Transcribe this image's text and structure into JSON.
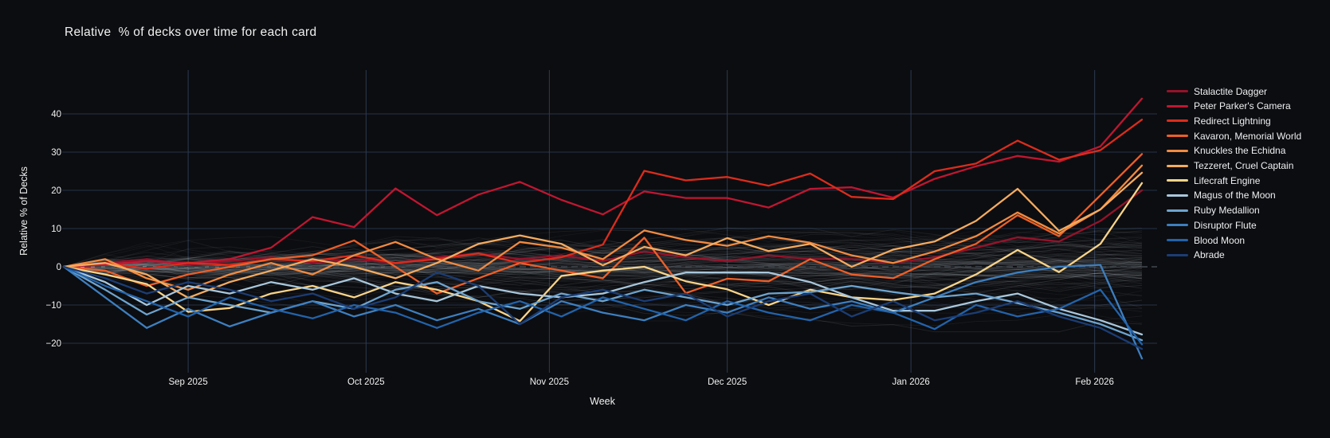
{
  "title": "Relative  % of decks over time for each card",
  "axes": {
    "x": {
      "title": "Week",
      "ticks": [
        {
          "label": "Sep 2025",
          "t": 3.0
        },
        {
          "label": "Oct 2025",
          "t": 7.29
        },
        {
          "label": "Nov 2025",
          "t": 11.71
        },
        {
          "label": "Dec 2025",
          "t": 16.0
        },
        {
          "label": "Jan 2026",
          "t": 20.43
        },
        {
          "label": "Feb 2026",
          "t": 24.86
        }
      ]
    },
    "y": {
      "title": "Relative % of Decks",
      "ticks": [
        {
          "label": "40",
          "v": 40
        },
        {
          "label": "30",
          "v": 30
        },
        {
          "label": "20",
          "v": 20
        },
        {
          "label": "10",
          "v": 10
        },
        {
          "label": "0",
          "v": 0
        },
        {
          "label": "−10",
          "v": -10
        },
        {
          "label": "−20",
          "v": -20
        }
      ]
    }
  },
  "chart_data": {
    "type": "line",
    "title": "Relative  % of decks over time for each card",
    "xlabel": "Week",
    "ylabel": "Relative % of Decks",
    "x_unit": "weekly samples, mid-Aug 2025 to mid-Feb 2026",
    "n_points": 27,
    "ylim": [
      -25,
      51
    ],
    "zeroline": {
      "value": 0,
      "style": "dashed",
      "color": "#3a4046"
    },
    "series": [
      {
        "name": "Stalactite Dagger",
        "color": "#96122a",
        "values": [
          0,
          1,
          2,
          0.5,
          1.5,
          2.5,
          1,
          2,
          1,
          2.5,
          3.5,
          2,
          3,
          1.5,
          4,
          2.5,
          1.5,
          3,
          2,
          2,
          1,
          2.5,
          5,
          7.7,
          6.6,
          12,
          20
        ]
      },
      {
        "name": "Peter Parker's Camera",
        "color": "#c01631",
        "values": [
          0,
          0.5,
          1.5,
          1,
          2,
          5,
          13,
          10.4,
          20.5,
          13.5,
          18.9,
          22.2,
          17.5,
          13.7,
          19.7,
          18,
          18,
          15.5,
          20.4,
          20.8,
          18.1,
          23,
          26.3,
          29,
          27.5,
          31.5,
          44
        ]
      },
      {
        "name": "Redirect Lightning",
        "color": "#dc2c1c",
        "values": [
          0,
          1,
          -0.5,
          1,
          0.5,
          2,
          1.5,
          3,
          1,
          2,
          3.5,
          1,
          2.5,
          5.8,
          25.1,
          22.6,
          23.5,
          21.2,
          24.4,
          18.3,
          17.7,
          25,
          27,
          33,
          28,
          30.5,
          38.5
        ]
      },
      {
        "name": "Kavaron, Memorial World",
        "color": "#ed5f28",
        "values": [
          0,
          -1,
          -5,
          -2,
          0,
          2,
          3,
          6.9,
          0,
          -7,
          -3,
          1,
          -1,
          -3,
          7.6,
          -6.9,
          -3.1,
          -3.8,
          2,
          -2,
          -3,
          2,
          6,
          13.5,
          8,
          18.7,
          29.5
        ]
      },
      {
        "name": "Knuckles the Echidna",
        "color": "#f28a40",
        "values": [
          0,
          2,
          -3,
          -6,
          -2,
          1,
          -2,
          3,
          6.5,
          2,
          -1,
          6.5,
          5,
          2,
          9.5,
          7,
          5.5,
          8,
          6.3,
          3,
          1,
          4,
          8,
          14.2,
          8.7,
          15,
          26.5
        ]
      },
      {
        "name": "Tezzeret, Cruel Captain",
        "color": "#f6ab5f",
        "values": [
          0,
          1,
          -2,
          -8.1,
          -4,
          -1,
          2,
          0,
          -3,
          1,
          6,
          8.2,
          6,
          0.4,
          5.2,
          3,
          7.5,
          4.1,
          6,
          0,
          4.5,
          6.6,
          12,
          20.4,
          9.4,
          15,
          24.6
        ]
      },
      {
        "name": "Lifecraft Engine",
        "color": "#fad488",
        "values": [
          0,
          -2,
          -4.5,
          -11.8,
          -10.8,
          -7,
          -5,
          -8,
          -4,
          -6,
          -9,
          -14.2,
          -2.4,
          -1,
          0,
          -3.8,
          -5.9,
          -10,
          -6,
          -8,
          -8.7,
          -7,
          -2,
          4.4,
          -1.4,
          6,
          21.9
        ]
      },
      {
        "name": "Magus of the Moon",
        "color": "#a8c7dc",
        "values": [
          0,
          -4,
          -10,
          -5,
          -7,
          -4,
          -6,
          -3,
          -7,
          -9,
          -5,
          -7,
          -8,
          -7,
          -4,
          -1.5,
          -1.5,
          -1.5,
          -4,
          -8,
          -11.5,
          -11.5,
          -9,
          -7,
          -11,
          -14,
          -17.7
        ]
      },
      {
        "name": "Ruby Medallion",
        "color": "#6da4cf",
        "values": [
          0,
          -6,
          -12.5,
          -8,
          -10,
          -12,
          -9,
          -11,
          -6,
          -4,
          -9,
          -11,
          -7,
          -9,
          -6,
          -8,
          -10,
          -7,
          -6.6,
          -5,
          -6.6,
          -8,
          -7,
          -9.5,
          -12,
          -15,
          -19.2
        ]
      },
      {
        "name": "Disruptor Flute",
        "color": "#3d7fc0",
        "values": [
          0,
          -8,
          -16,
          -11,
          -15.6,
          -12,
          -9,
          -13,
          -10,
          -14,
          -11,
          -15,
          -9,
          -12,
          -14,
          -10,
          -12,
          -8,
          -11,
          -9,
          -12,
          -8,
          -4,
          -1.5,
          0,
          0.5,
          -24
        ]
      },
      {
        "name": "Blood Moon",
        "color": "#2263ab",
        "values": [
          0,
          -5,
          -9,
          -13,
          -8,
          -11,
          -13.5,
          -10,
          -12,
          -16,
          -12,
          -9,
          -13,
          -8,
          -11,
          -14,
          -9,
          -12,
          -14,
          -10,
          -12,
          -16.3,
          -10,
          -13,
          -11,
          -6,
          -20.3
        ]
      },
      {
        "name": "Abrade",
        "color": "#1b3d75",
        "values": [
          0,
          -3,
          -7,
          -4,
          -6,
          -9,
          -7,
          -11,
          -8,
          -1.5,
          -5,
          -15,
          -8,
          -6,
          -9,
          -7,
          -13,
          -9,
          -7,
          -13,
          -9,
          -14,
          -12,
          -9,
          -13,
          -16,
          -21.5
        ]
      }
    ],
    "background_series": {
      "count": 115,
      "color": "#dde6ee",
      "description": "other unhighlighted cards, translucent gray band around 0",
      "value_range": [
        -19,
        15
      ]
    },
    "legend_position": "right",
    "grid": true
  },
  "colors": {
    "background": "#0c0d10",
    "grid_vertical": "#2c3a52",
    "grid_horizontal": "#263347",
    "zeroline": "#3a4046",
    "text": "#f2f2f2"
  }
}
